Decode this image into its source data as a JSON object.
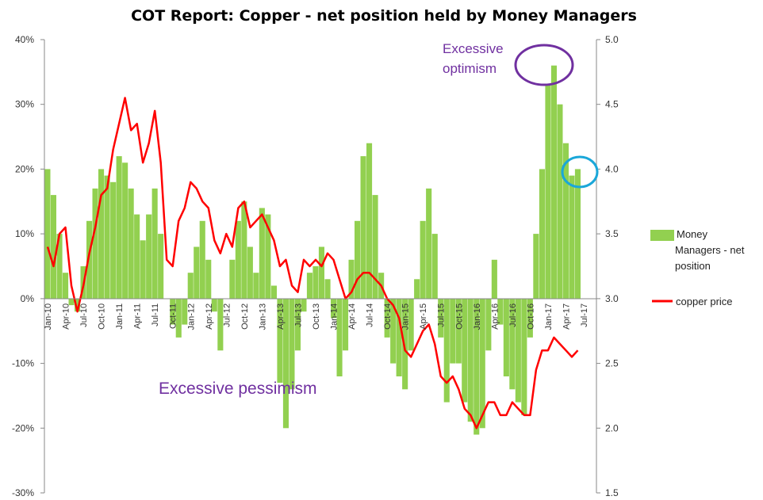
{
  "chart_data": {
    "type": "bar",
    "title": "COT Report: Copper - net position held by Money Managers",
    "xlabel": "",
    "ylabel": "",
    "y_left": {
      "ticks": [
        "40%",
        "30%",
        "20%",
        "10%",
        "0%",
        "-10%",
        "-20%",
        "-30%"
      ],
      "range": [
        -30,
        40
      ],
      "unit": "%"
    },
    "y_right": {
      "ticks": [
        "5.0",
        "4.5",
        "4.0",
        "3.5",
        "3.0",
        "2.5",
        "2.0",
        "1.5"
      ],
      "range": [
        1.5,
        5.0
      ]
    },
    "x_ticks": [
      "Jan-10",
      "Apr-10",
      "Jul-10",
      "Oct-10",
      "Jan-11",
      "Apr-11",
      "Jul-11",
      "Oct-11",
      "Jan-12",
      "Apr-12",
      "Jul-12",
      "Oct-12",
      "Jan-13",
      "Apr-13",
      "Jul-13",
      "Oct-13",
      "Jan-14",
      "Apr-14",
      "Jul-14",
      "Oct-14",
      "Jan-15",
      "Apr-15",
      "Jul-15",
      "Oct-15",
      "Jan-16",
      "Apr-16",
      "Jul-16",
      "Oct-16",
      "Jan-17",
      "Apr-17",
      "Jul-17"
    ],
    "x_range": [
      "2010-01",
      "2017-07"
    ],
    "grid": false,
    "legend": "right",
    "series": [
      {
        "name": "Money Managers - net position",
        "type": "bar",
        "axis": "left",
        "color": "#92d050",
        "x": [
          "2010-01",
          "2010-02",
          "2010-03",
          "2010-04",
          "2010-05",
          "2010-06",
          "2010-07",
          "2010-08",
          "2010-09",
          "2010-10",
          "2010-11",
          "2010-12",
          "2011-01",
          "2011-02",
          "2011-03",
          "2011-04",
          "2011-05",
          "2011-06",
          "2011-07",
          "2011-08",
          "2011-09",
          "2011-10",
          "2011-11",
          "2011-12",
          "2012-01",
          "2012-02",
          "2012-03",
          "2012-04",
          "2012-05",
          "2012-06",
          "2012-07",
          "2012-08",
          "2012-09",
          "2012-10",
          "2012-11",
          "2012-12",
          "2013-01",
          "2013-02",
          "2013-03",
          "2013-04",
          "2013-05",
          "2013-06",
          "2013-07",
          "2013-08",
          "2013-09",
          "2013-10",
          "2013-11",
          "2013-12",
          "2014-01",
          "2014-02",
          "2014-03",
          "2014-04",
          "2014-05",
          "2014-06",
          "2014-07",
          "2014-08",
          "2014-09",
          "2014-10",
          "2014-11",
          "2014-12",
          "2015-01",
          "2015-02",
          "2015-03",
          "2015-04",
          "2015-05",
          "2015-06",
          "2015-07",
          "2015-08",
          "2015-09",
          "2015-10",
          "2015-11",
          "2015-12",
          "2016-01",
          "2016-02",
          "2016-03",
          "2016-04",
          "2016-05",
          "2016-06",
          "2016-07",
          "2016-08",
          "2016-09",
          "2016-10",
          "2016-11",
          "2016-12",
          "2017-01",
          "2017-02",
          "2017-03",
          "2017-04",
          "2017-05",
          "2017-06"
        ],
        "values": [
          20,
          16,
          10,
          4,
          -1,
          -2,
          5,
          12,
          17,
          20,
          19,
          18,
          22,
          21,
          17,
          13,
          9,
          13,
          17,
          10,
          0,
          -4,
          -6,
          -4,
          4,
          8,
          12,
          6,
          -2,
          -8,
          0,
          6,
          12,
          15,
          8,
          4,
          14,
          13,
          2,
          -13,
          -20,
          -14,
          -8,
          -2,
          4,
          5,
          8,
          3,
          -3,
          -12,
          -8,
          6,
          12,
          22,
          24,
          16,
          4,
          -6,
          -10,
          -12,
          -14,
          -8,
          3,
          12,
          17,
          10,
          -6,
          -16,
          -10,
          -10,
          -16,
          -19,
          -21,
          -20,
          -8,
          6,
          -4,
          -12,
          -14,
          -16,
          -18,
          -6,
          10,
          20,
          33,
          36,
          30,
          24,
          19,
          20
        ],
        "annotations": [
          {
            "text": "Excessive optimism",
            "near": "2017-01"
          },
          {
            "text": "Excessive pessimism",
            "near": "2013-06"
          }
        ]
      },
      {
        "name": "copper price",
        "type": "line",
        "axis": "right",
        "color": "#ff0000",
        "x": [
          "2010-01",
          "2010-02",
          "2010-03",
          "2010-04",
          "2010-05",
          "2010-06",
          "2010-07",
          "2010-08",
          "2010-09",
          "2010-10",
          "2010-11",
          "2010-12",
          "2011-01",
          "2011-02",
          "2011-03",
          "2011-04",
          "2011-05",
          "2011-06",
          "2011-07",
          "2011-08",
          "2011-09",
          "2011-10",
          "2011-11",
          "2011-12",
          "2012-01",
          "2012-02",
          "2012-03",
          "2012-04",
          "2012-05",
          "2012-06",
          "2012-07",
          "2012-08",
          "2012-09",
          "2012-10",
          "2012-11",
          "2012-12",
          "2013-01",
          "2013-02",
          "2013-03",
          "2013-04",
          "2013-05",
          "2013-06",
          "2013-07",
          "2013-08",
          "2013-09",
          "2013-10",
          "2013-11",
          "2013-12",
          "2014-01",
          "2014-02",
          "2014-03",
          "2014-04",
          "2014-05",
          "2014-06",
          "2014-07",
          "2014-08",
          "2014-09",
          "2014-10",
          "2014-11",
          "2014-12",
          "2015-01",
          "2015-02",
          "2015-03",
          "2015-04",
          "2015-05",
          "2015-06",
          "2015-07",
          "2015-08",
          "2015-09",
          "2015-10",
          "2015-11",
          "2015-12",
          "2016-01",
          "2016-02",
          "2016-03",
          "2016-04",
          "2016-05",
          "2016-06",
          "2016-07",
          "2016-08",
          "2016-09",
          "2016-10",
          "2016-11",
          "2016-12",
          "2017-01",
          "2017-02",
          "2017-03",
          "2017-04",
          "2017-05",
          "2017-06"
        ],
        "values": [
          3.4,
          3.25,
          3.5,
          3.55,
          3.1,
          2.9,
          3.1,
          3.35,
          3.55,
          3.8,
          3.85,
          4.15,
          4.35,
          4.55,
          4.3,
          4.35,
          4.05,
          4.2,
          4.45,
          4.05,
          3.3,
          3.25,
          3.6,
          3.7,
          3.9,
          3.85,
          3.75,
          3.7,
          3.45,
          3.35,
          3.5,
          3.4,
          3.7,
          3.75,
          3.55,
          3.6,
          3.65,
          3.55,
          3.45,
          3.25,
          3.3,
          3.1,
          3.05,
          3.3,
          3.25,
          3.3,
          3.25,
          3.35,
          3.3,
          3.15,
          3.0,
          3.05,
          3.15,
          3.2,
          3.2,
          3.15,
          3.1,
          3.0,
          2.95,
          2.85,
          2.6,
          2.55,
          2.65,
          2.75,
          2.8,
          2.65,
          2.4,
          2.35,
          2.4,
          2.3,
          2.15,
          2.1,
          2.0,
          2.1,
          2.2,
          2.2,
          2.1,
          2.1,
          2.2,
          2.15,
          2.1,
          2.1,
          2.45,
          2.6,
          2.6,
          2.7,
          2.65,
          2.6,
          2.55,
          2.6
        ]
      }
    ]
  }
}
